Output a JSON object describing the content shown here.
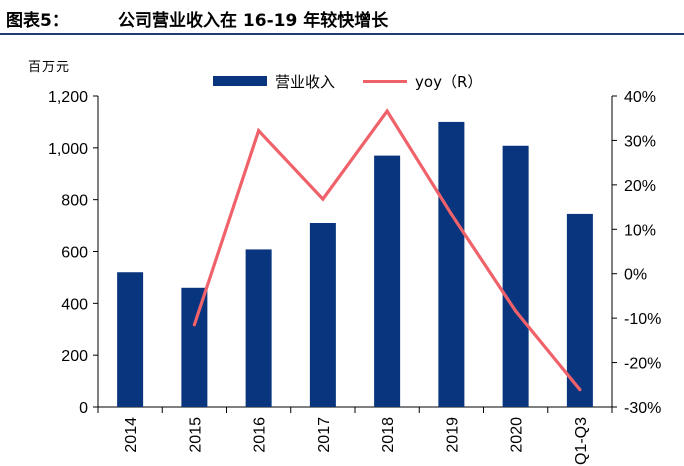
{
  "figure": {
    "label": "图表5：",
    "title": "公司营业收入在 16-19 年较快增长"
  },
  "chart_data": {
    "type": "bar",
    "unit": "百万元",
    "categories": [
      "2014",
      "2015",
      "2016",
      "2017",
      "2018",
      "2019",
      "2020",
      "Q1-Q3"
    ],
    "series": [
      {
        "name": "营业收入",
        "type": "bar",
        "axis": "left",
        "color": "#08357e",
        "values": [
          520,
          460,
          608,
          710,
          970,
          1100,
          1008,
          745
        ]
      },
      {
        "name": "yoy（R）",
        "type": "line",
        "axis": "right",
        "color": "#f0626a",
        "values": [
          null,
          -11.5,
          32.2,
          16.8,
          36.6,
          13.4,
          -8.4,
          -26.1
        ]
      }
    ],
    "y_left": {
      "min": 0,
      "max": 1200,
      "ticks": [
        "0",
        "200",
        "400",
        "600",
        "800",
        "1,000",
        "1,200"
      ]
    },
    "y_right": {
      "min": -30,
      "max": 40,
      "ticks": [
        "-30%",
        "-20%",
        "-10%",
        "0%",
        "10%",
        "20%",
        "30%",
        "40%"
      ]
    },
    "grid": false,
    "legend_position": "top-center"
  }
}
